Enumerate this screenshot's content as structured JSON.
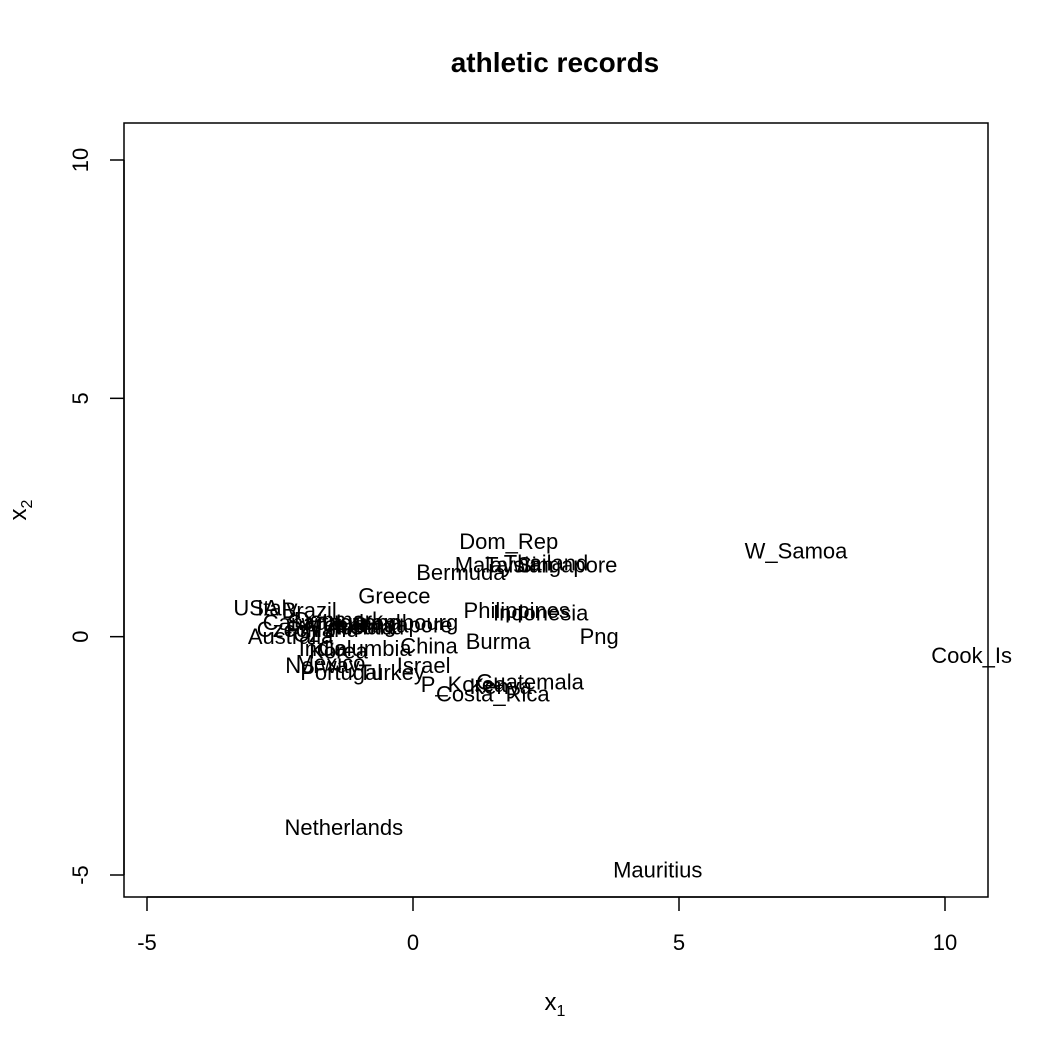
{
  "chart_data": {
    "type": "scatter",
    "title": "athletic records",
    "xlabel": {
      "base": "x",
      "sub": "1"
    },
    "ylabel": {
      "base": "x",
      "sub": "2"
    },
    "xlim": [
      -5.5,
      10.8
    ],
    "ylim": [
      -5.5,
      10.8
    ],
    "x_ticks": [
      -5,
      0,
      5,
      10
    ],
    "y_ticks": [
      -5,
      0,
      5,
      10
    ],
    "grid": false,
    "points": [
      {
        "label": "Dom_Rep",
        "x": 1.8,
        "y": 2.0
      },
      {
        "label": "Malaysia",
        "x": 1.6,
        "y": 1.5
      },
      {
        "label": "Taiwan",
        "x": 2.0,
        "y": 1.5
      },
      {
        "label": "Thailand",
        "x": 2.5,
        "y": 1.55
      },
      {
        "label": "Singapore",
        "x": 2.9,
        "y": 1.5
      },
      {
        "label": "Bermuda",
        "x": 0.9,
        "y": 1.35
      },
      {
        "label": "W_Samoa",
        "x": 7.2,
        "y": 1.8
      },
      {
        "label": "Greece",
        "x": -0.35,
        "y": 0.85
      },
      {
        "label": "USA",
        "x": -2.95,
        "y": 0.6
      },
      {
        "label": "Italy",
        "x": -2.55,
        "y": 0.6
      },
      {
        "label": "Brazil",
        "x": -1.95,
        "y": 0.55
      },
      {
        "label": "Philippines",
        "x": 1.95,
        "y": 0.55
      },
      {
        "label": "Indonesia",
        "x": 2.4,
        "y": 0.5
      },
      {
        "label": "Luxembourg",
        "x": -0.3,
        "y": 0.3
      },
      {
        "label": "Canada",
        "x": -2.1,
        "y": 0.3
      },
      {
        "label": "Argentina",
        "x": -1.2,
        "y": 0.25
      },
      {
        "label": "Finland",
        "x": -1.7,
        "y": 0.15
      },
      {
        "label": "Switzerland",
        "x": -1.3,
        "y": 0.3
      },
      {
        "label": "Austria",
        "x": -1.0,
        "y": 0.2
      },
      {
        "label": "Ireland",
        "x": -0.8,
        "y": 0.2
      },
      {
        "label": "Denmark",
        "x": -1.4,
        "y": 0.35
      },
      {
        "label": "Singapore_2",
        "x": -0.2,
        "y": 0.25
      },
      {
        "label": "Cz",
        "x": -2.0,
        "y": 0.05
      },
      {
        "label": "Australia",
        "x": -2.3,
        "y": 0.0
      },
      {
        "label": "Czech",
        "x": -2.35,
        "y": 0.15
      },
      {
        "label": "Burma",
        "x": 1.6,
        "y": -0.1
      },
      {
        "label": "Png",
        "x": 3.5,
        "y": 0.0
      },
      {
        "label": "China",
        "x": 0.3,
        "y": -0.2
      },
      {
        "label": "Korea",
        "x": -1.4,
        "y": -0.3
      },
      {
        "label": "Columbia",
        "x": -0.9,
        "y": -0.25
      },
      {
        "label": "India",
        "x": -1.7,
        "y": -0.25
      },
      {
        "label": "Mexico",
        "x": -1.55,
        "y": -0.55
      },
      {
        "label": "Israel",
        "x": 0.2,
        "y": -0.6
      },
      {
        "label": "Norway",
        "x": -1.7,
        "y": -0.6
      },
      {
        "label": "Portugal",
        "x": -1.35,
        "y": -0.75
      },
      {
        "label": "Turkey",
        "x": -0.4,
        "y": -0.75
      },
      {
        "label": "P_Korea",
        "x": 0.95,
        "y": -1.0
      },
      {
        "label": "Guatemala",
        "x": 2.2,
        "y": -0.95
      },
      {
        "label": "Kenya",
        "x": 1.65,
        "y": -1.05
      },
      {
        "label": "Costa_Rica",
        "x": 1.5,
        "y": -1.2
      },
      {
        "label": "Cook_Is",
        "x": 10.5,
        "y": -0.4
      },
      {
        "label": "Netherlands",
        "x": -1.3,
        "y": -4.0
      },
      {
        "label": "Mauritius",
        "x": 4.6,
        "y": -4.9
      }
    ]
  }
}
